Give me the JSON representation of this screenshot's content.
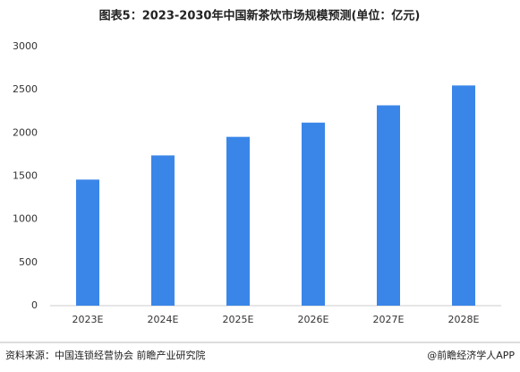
{
  "chart_data": {
    "type": "bar",
    "title": "图表5：2023-2030年中国新茶饮市场规模预测(单位：亿元)",
    "categories": [
      "2023E",
      "2024E",
      "2025E",
      "2026E",
      "2027E",
      "2028E"
    ],
    "values": [
      1460,
      1740,
      1955,
      2120,
      2320,
      2550
    ],
    "color": "#3a86e8",
    "ylim": [
      0,
      3000
    ],
    "yticks": [
      0,
      500,
      1000,
      1500,
      2000,
      2500,
      3000
    ],
    "grid": false,
    "source": "资料来源：中国连锁经营协会 前瞻产业研究院",
    "credit": "@前瞻经济学人APP"
  }
}
